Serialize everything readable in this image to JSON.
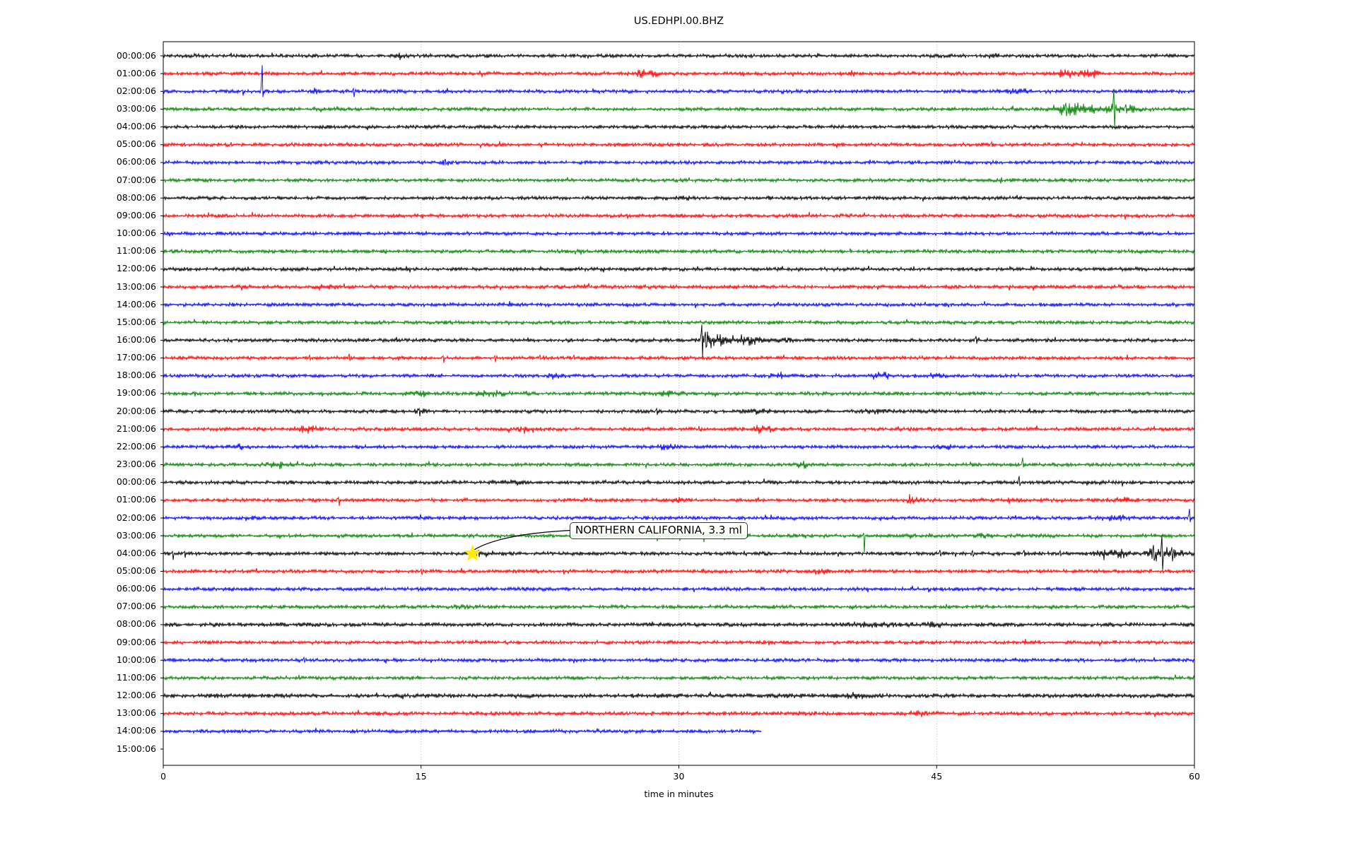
{
  "title": "US.EDHPI.00.BHZ",
  "xlabel": "time in minutes",
  "annotation": {
    "text": "NORTHERN CALIFORNIA, 3.3 ml",
    "target_row": 28,
    "target_minute": 18.0,
    "marker": "star-icon"
  },
  "colors": {
    "black": "#000000",
    "red": "#ff0000",
    "blue": "#0000ff",
    "green": "#008000",
    "grid": "#b0b0b0",
    "star": "#ffee00",
    "spine": "#000000",
    "annotation_border": "#3a3a3a"
  },
  "chart_data": {
    "type": "line",
    "subtype": "seismogram-dayplot",
    "title": "US.EDHPI.00.BHZ",
    "xlabel": "time in minutes",
    "x_range_minutes": [
      0,
      60
    ],
    "x_ticks": [
      0,
      15,
      30,
      45,
      60
    ],
    "grid_minutes": [
      15,
      30,
      45
    ],
    "grid_style": "dotted",
    "trace_color_cycle": [
      "black",
      "red",
      "blue",
      "green"
    ],
    "rows": [
      {
        "label": "00:00:06",
        "color": "black",
        "base": 2.2,
        "end": 60,
        "bursts": [
          {
            "t": 13.7,
            "w": 0.25,
            "a": 3
          },
          {
            "t": 48.3,
            "w": 0.2,
            "a": 2.5
          }
        ],
        "spikes": []
      },
      {
        "label": "01:00:06",
        "color": "red",
        "base": 2.3,
        "end": 60,
        "bursts": [
          {
            "t": 28.1,
            "w": 0.45,
            "a": 4.5
          },
          {
            "t": 40.2,
            "w": 0.2,
            "a": 2
          },
          {
            "t": 52.6,
            "w": 0.4,
            "a": 4
          },
          {
            "t": 53.9,
            "w": 0.35,
            "a": 4.5
          }
        ],
        "spikes": []
      },
      {
        "label": "02:00:06",
        "color": "blue",
        "base": 2.2,
        "end": 60,
        "bursts": [
          {
            "t": 5.76,
            "w": 0.08,
            "a": 3
          },
          {
            "t": 8.8,
            "w": 0.15,
            "a": 2.5
          },
          {
            "t": 49.6,
            "w": 0.5,
            "a": 2.5
          }
        ],
        "spikes": [
          {
            "t": 5.76,
            "up": 37,
            "down": 8
          },
          {
            "t": 4.6,
            "up": 2,
            "down": 6
          },
          {
            "t": 11.05,
            "up": 4,
            "down": 8
          }
        ]
      },
      {
        "label": "03:00:06",
        "color": "green",
        "base": 2.2,
        "end": 60,
        "bursts": [
          {
            "t": 52.4,
            "w": 0.5,
            "a": 5
          },
          {
            "t": 53.3,
            "w": 0.45,
            "a": 6
          },
          {
            "t": 55.0,
            "w": 0.8,
            "a": 4
          },
          {
            "t": 56.3,
            "w": 0.4,
            "a": 4
          }
        ],
        "spikes": [
          {
            "t": 52.5,
            "up": 9,
            "down": 10
          },
          {
            "t": 55.3,
            "up": 29,
            "down": 27
          },
          {
            "t": 56.0,
            "up": 7,
            "down": 6
          }
        ]
      },
      {
        "label": "04:00:06",
        "color": "black",
        "base": 2.2,
        "end": 60,
        "bursts": [],
        "spikes": []
      },
      {
        "label": "05:00:06",
        "color": "red",
        "base": 2.3,
        "end": 60,
        "bursts": [],
        "spikes": [
          {
            "t": 48.2,
            "up": 4,
            "down": 3
          }
        ]
      },
      {
        "label": "06:00:06",
        "color": "blue",
        "base": 2.2,
        "end": 60,
        "bursts": [
          {
            "t": 16.4,
            "w": 0.2,
            "a": 2
          }
        ],
        "spikes": [
          {
            "t": 16.4,
            "up": 5,
            "down": 3
          }
        ]
      },
      {
        "label": "07:00:06",
        "color": "green",
        "base": 2.2,
        "end": 60,
        "bursts": [],
        "spikes": []
      },
      {
        "label": "08:00:06",
        "color": "black",
        "base": 2.2,
        "end": 60,
        "bursts": [
          {
            "t": 30.5,
            "w": 0.3,
            "a": 2
          }
        ],
        "spikes": []
      },
      {
        "label": "09:00:06",
        "color": "red",
        "base": 2.3,
        "end": 60,
        "bursts": [],
        "spikes": []
      },
      {
        "label": "10:00:06",
        "color": "blue",
        "base": 2.2,
        "end": 60,
        "bursts": [],
        "spikes": []
      },
      {
        "label": "11:00:06",
        "color": "green",
        "base": 2.2,
        "end": 60,
        "bursts": [],
        "spikes": []
      },
      {
        "label": "12:00:06",
        "color": "black",
        "base": 2.3,
        "end": 60,
        "bursts": [],
        "spikes": []
      },
      {
        "label": "13:00:06",
        "color": "red",
        "base": 2.4,
        "end": 60,
        "bursts": [
          {
            "t": 9.3,
            "w": 0.5,
            "a": 2.5
          }
        ],
        "spikes": []
      },
      {
        "label": "14:00:06",
        "color": "blue",
        "base": 2.2,
        "end": 60,
        "bursts": [],
        "spikes": []
      },
      {
        "label": "15:00:06",
        "color": "green",
        "base": 2.2,
        "end": 60,
        "bursts": [],
        "spikes": []
      },
      {
        "label": "16:00:06",
        "color": "black",
        "base": 2.2,
        "end": 60,
        "bursts": [
          {
            "t": 31.6,
            "w": 0.25,
            "a": 8
          },
          {
            "t": 32.2,
            "w": 0.4,
            "a": 4
          },
          {
            "t": 33.0,
            "w": 0.5,
            "a": 3.5
          },
          {
            "t": 33.9,
            "w": 0.3,
            "a": 4
          },
          {
            "t": 34.6,
            "w": 0.4,
            "a": 2.5
          },
          {
            "t": 36.0,
            "w": 0.8,
            "a": 1.2
          }
        ],
        "spikes": [
          {
            "t": 31.35,
            "up": 22,
            "down": 24
          },
          {
            "t": 31.55,
            "up": 12,
            "down": 10
          },
          {
            "t": 47.3,
            "up": 6,
            "down": 5
          }
        ]
      },
      {
        "label": "17:00:06",
        "color": "red",
        "base": 2.3,
        "end": 60,
        "bursts": [],
        "spikes": [
          {
            "t": 8.5,
            "up": 4,
            "down": 3
          },
          {
            "t": 10.8,
            "up": 6,
            "down": 4
          },
          {
            "t": 16.3,
            "up": 3,
            "down": 7
          },
          {
            "t": 19.3,
            "up": 3,
            "down": 6
          },
          {
            "t": 21.9,
            "up": 4,
            "down": 2
          },
          {
            "t": 23.9,
            "up": 4,
            "down": 2
          }
        ]
      },
      {
        "label": "18:00:06",
        "color": "blue",
        "base": 2.2,
        "end": 60,
        "bursts": [
          {
            "t": 22.8,
            "w": 0.3,
            "a": 3
          },
          {
            "t": 35.9,
            "w": 0.4,
            "a": 2.5
          },
          {
            "t": 41.8,
            "w": 0.5,
            "a": 3
          },
          {
            "t": 45.0,
            "w": 0.3,
            "a": 2
          }
        ],
        "spikes": []
      },
      {
        "label": "19:00:06",
        "color": "green",
        "base": 2.2,
        "end": 60,
        "bursts": [
          {
            "t": 15.0,
            "w": 0.5,
            "a": 2
          },
          {
            "t": 19.1,
            "w": 0.7,
            "a": 2.5
          },
          {
            "t": 29.6,
            "w": 0.8,
            "a": 2
          }
        ],
        "spikes": []
      },
      {
        "label": "20:00:06",
        "color": "black",
        "base": 2.2,
        "end": 60,
        "bursts": [
          {
            "t": 14.9,
            "w": 0.2,
            "a": 3
          },
          {
            "t": 34.5,
            "w": 0.5,
            "a": 2
          },
          {
            "t": 41.5,
            "w": 0.5,
            "a": 2
          }
        ],
        "spikes": [
          {
            "t": 14.9,
            "up": 4,
            "down": 7
          },
          {
            "t": 28.7,
            "up": 4,
            "down": 5
          }
        ]
      },
      {
        "label": "21:00:06",
        "color": "red",
        "base": 2.3,
        "end": 60,
        "bursts": [
          {
            "t": 8.3,
            "w": 0.5,
            "a": 3.5
          },
          {
            "t": 21.0,
            "w": 0.3,
            "a": 2
          },
          {
            "t": 34.8,
            "w": 0.5,
            "a": 3.5
          }
        ],
        "spikes": []
      },
      {
        "label": "22:00:06",
        "color": "blue",
        "base": 2.2,
        "end": 60,
        "bursts": [
          {
            "t": 4.5,
            "w": 0.4,
            "a": 2
          },
          {
            "t": 29.2,
            "w": 0.4,
            "a": 2.5
          },
          {
            "t": 45.5,
            "w": 0.3,
            "a": 2
          }
        ],
        "spikes": []
      },
      {
        "label": "23:00:06",
        "color": "green",
        "base": 2.2,
        "end": 60,
        "bursts": [
          {
            "t": 6.8,
            "w": 0.5,
            "a": 3
          },
          {
            "t": 37.2,
            "w": 0.4,
            "a": 2.5
          }
        ],
        "spikes": [
          {
            "t": 50.0,
            "up": 10,
            "down": 4
          }
        ]
      },
      {
        "label": "00:00:06",
        "color": "black",
        "base": 2.3,
        "end": 60,
        "bursts": [
          {
            "t": 20.3,
            "w": 0.3,
            "a": 2
          }
        ],
        "spikes": [
          {
            "t": 49.8,
            "up": 9,
            "down": 5
          }
        ]
      },
      {
        "label": "01:00:06",
        "color": "red",
        "base": 2.3,
        "end": 60,
        "bursts": [
          {
            "t": 30.0,
            "w": 0.4,
            "a": 3
          },
          {
            "t": 43.6,
            "w": 0.3,
            "a": 2.5
          },
          {
            "t": 49.4,
            "w": 0.3,
            "a": 2.5
          },
          {
            "t": 55.8,
            "w": 0.3,
            "a": 2.5
          }
        ],
        "spikes": [
          {
            "t": 10.2,
            "up": 4,
            "down": 8
          }
        ]
      },
      {
        "label": "02:00:06",
        "color": "blue",
        "base": 2.2,
        "end": 60,
        "bursts": [
          {
            "t": 55.5,
            "w": 0.6,
            "a": 2
          }
        ],
        "spikes": [
          {
            "t": 59.7,
            "up": 13,
            "down": 6
          }
        ]
      },
      {
        "label": "03:00:06",
        "color": "green",
        "base": 2.2,
        "end": 60,
        "bursts": [
          {
            "t": 29.3,
            "w": 0.8,
            "a": 2.5
          },
          {
            "t": 31.8,
            "w": 0.6,
            "a": 2.5
          },
          {
            "t": 48.0,
            "w": 0.4,
            "a": 2
          }
        ],
        "spikes": [
          {
            "t": 28.7,
            "up": 3,
            "down": 8
          },
          {
            "t": 30.0,
            "up": 3,
            "down": 7
          },
          {
            "t": 31.4,
            "up": 3,
            "down": 9
          },
          {
            "t": 32.6,
            "up": 2,
            "down": 6
          },
          {
            "t": 40.75,
            "up": 4,
            "down": 24
          }
        ]
      },
      {
        "label": "04:00:06",
        "color": "black",
        "base": 2.2,
        "end": 60,
        "bursts": [
          {
            "t": 18.6,
            "w": 0.5,
            "a": 2.5
          },
          {
            "t": 54.9,
            "w": 0.5,
            "a": 4
          },
          {
            "t": 55.8,
            "w": 0.3,
            "a": 3
          },
          {
            "t": 57.7,
            "w": 0.3,
            "a": 5
          },
          {
            "t": 58.3,
            "w": 0.4,
            "a": 6
          },
          {
            "t": 59.0,
            "w": 0.4,
            "a": 3
          }
        ],
        "spikes": [
          {
            "t": 0.55,
            "up": 3,
            "down": 9
          },
          {
            "t": 1.25,
            "up": 3,
            "down": 6
          },
          {
            "t": 18.35,
            "up": 5,
            "down": 5
          },
          {
            "t": 45.2,
            "up": 5,
            "down": 4
          },
          {
            "t": 47.1,
            "up": 4,
            "down": 4
          },
          {
            "t": 50.1,
            "up": 5,
            "down": 4
          },
          {
            "t": 52.2,
            "up": 4,
            "down": 3
          },
          {
            "t": 57.6,
            "up": 12,
            "down": 10
          },
          {
            "t": 58.1,
            "up": 26,
            "down": 24
          },
          {
            "t": 58.7,
            "up": 9,
            "down": 11
          }
        ]
      },
      {
        "label": "05:00:06",
        "color": "red",
        "base": 2.3,
        "end": 60,
        "bursts": [
          {
            "t": 38.2,
            "w": 0.4,
            "a": 2
          }
        ],
        "spikes": [
          {
            "t": 15.0,
            "up": 3,
            "down": 5
          }
        ]
      },
      {
        "label": "06:00:06",
        "color": "blue",
        "base": 2.2,
        "end": 60,
        "bursts": [],
        "spikes": []
      },
      {
        "label": "07:00:06",
        "color": "green",
        "base": 2.2,
        "end": 60,
        "bursts": [
          {
            "t": 17.5,
            "w": 0.5,
            "a": 1.5
          }
        ],
        "spikes": []
      },
      {
        "label": "08:00:06",
        "color": "black",
        "base": 2.5,
        "end": 60,
        "bursts": [
          {
            "t": 41.5,
            "w": 1.2,
            "a": 1.5
          },
          {
            "t": 44.9,
            "w": 0.3,
            "a": 3
          }
        ],
        "spikes": []
      },
      {
        "label": "09:00:06",
        "color": "red",
        "base": 2.3,
        "end": 60,
        "bursts": [],
        "spikes": []
      },
      {
        "label": "10:00:06",
        "color": "blue",
        "base": 2.2,
        "end": 60,
        "bursts": [],
        "spikes": [
          {
            "t": 8.2,
            "up": 4,
            "down": 3
          }
        ]
      },
      {
        "label": "11:00:06",
        "color": "green",
        "base": 2.2,
        "end": 60,
        "bursts": [],
        "spikes": []
      },
      {
        "label": "12:00:06",
        "color": "black",
        "base": 2.7,
        "end": 60,
        "bursts": [
          {
            "t": 40.1,
            "w": 0.5,
            "a": 2
          }
        ],
        "spikes": []
      },
      {
        "label": "13:00:06",
        "color": "red",
        "base": 2.5,
        "end": 60,
        "bursts": [
          {
            "t": 44.2,
            "w": 0.5,
            "a": 2
          }
        ],
        "spikes": []
      },
      {
        "label": "14:00:06",
        "color": "blue",
        "base": 2.2,
        "end": 34.8,
        "bursts": [],
        "spikes": []
      },
      {
        "label": "15:00:06",
        "color": null,
        "base": 0,
        "end": 0,
        "bursts": [],
        "spikes": []
      }
    ]
  }
}
